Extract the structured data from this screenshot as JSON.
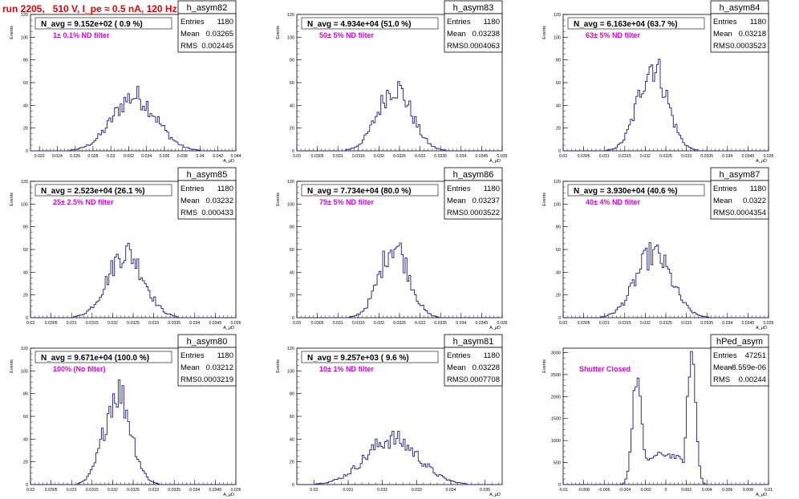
{
  "header": {
    "title": "run 2205,   510 V, I_pe ≈ 0.5 nA, 120 Hz"
  },
  "colors": {
    "hist": "#1a1a8c",
    "annotation": "#e000e0",
    "title": "#ee0000",
    "frame": "#000000"
  },
  "chart_data": [
    {
      "type": "bar",
      "name": "h_asym82",
      "stats": {
        "entries_label": "Entries",
        "entries": "1180",
        "mean_label": "Mean",
        "mean": "0.03265",
        "rms_label": "RMS",
        "rms": "0.002445"
      },
      "navg": "N_avg = 9.152e+02 ( 0.9 %)",
      "filter": "1± 0.1% ND filter",
      "ylabel": "Events",
      "xlabel": "A_μD",
      "xlim": [
        0.021,
        0.044
      ],
      "ylim": [
        0,
        120
      ],
      "xticks": [
        "0.022",
        "0.024",
        "0.026",
        "0.028",
        "0.03",
        "0.032",
        "0.034",
        "0.036",
        "0.038",
        "0.04",
        "0.042",
        "0.044"
      ],
      "yticks": [
        "0",
        "20",
        "40",
        "60",
        "80",
        "100",
        "120"
      ],
      "mean": 0.03265,
      "rms": 0.002445,
      "peak": 48
    },
    {
      "type": "bar",
      "name": "h_asym83",
      "stats": {
        "entries_label": "Entries",
        "entries": "1180",
        "mean_label": "Mean",
        "mean": "0.03238",
        "rms_label": "RMS",
        "rms": "0.0004063"
      },
      "navg": "N_avg = 4.934e+04 (51.0 %)",
      "filter": "50± 5% ND filter",
      "ylabel": "Events",
      "xlabel": "A_μD",
      "xlim": [
        0.03,
        0.035
      ],
      "ylim": [
        0,
        120
      ],
      "xticks": [
        "0.03",
        "0.0305",
        "0.031",
        "0.0315",
        "0.032",
        "0.0325",
        "0.033",
        "0.0335",
        "0.034",
        "0.0345",
        "0.035"
      ],
      "yticks": [
        "0",
        "20",
        "40",
        "60",
        "80",
        "100",
        "120"
      ],
      "mean": 0.03238,
      "rms": 0.0004063,
      "peak": 56
    },
    {
      "type": "bar",
      "name": "h_asym84",
      "stats": {
        "entries_label": "Entries",
        "entries": "1180",
        "mean_label": "Mean",
        "mean": "0.03218",
        "rms_label": "RMS",
        "rms": "0.0003523"
      },
      "navg": "N_avg = 6.163e+04 (63.7 %)",
      "filter": "63± 5% ND filter",
      "ylabel": "Events",
      "xlabel": "A_μD",
      "xlim": [
        0.03,
        0.035
      ],
      "ylim": [
        0,
        120
      ],
      "xticks": [
        "0.03",
        "0.0305",
        "0.031",
        "0.0315",
        "0.032",
        "0.0325",
        "0.033",
        "0.0335",
        "0.034",
        "0.0345",
        "0.035"
      ],
      "yticks": [
        "0",
        "20",
        "40",
        "60",
        "80",
        "100",
        "120"
      ],
      "mean": 0.03218,
      "rms": 0.0003523,
      "peak": 76
    },
    {
      "type": "bar",
      "name": "h_asym85",
      "stats": {
        "entries_label": "Entries",
        "entries": "1180",
        "mean_label": "Mean",
        "mean": "0.03232",
        "rms_label": "RMS",
        "rms": "0.000433"
      },
      "navg": "N_avg = 2.523e+04 (26.1 %)",
      "filter": "25± 2.5% ND filter",
      "ylabel": "Events",
      "xlabel": "A_μD",
      "xlim": [
        0.03,
        0.035
      ],
      "ylim": [
        0,
        120
      ],
      "xticks": [
        "0.03",
        "0.0305",
        "0.031",
        "0.0315",
        "0.032",
        "0.0325",
        "0.033",
        "0.0335",
        "0.034",
        "0.0345",
        "0.035"
      ],
      "yticks": [
        "0",
        "20",
        "40",
        "60",
        "80",
        "100",
        "120"
      ],
      "mean": 0.03232,
      "rms": 0.000433,
      "peak": 58
    },
    {
      "type": "bar",
      "name": "h_asym86",
      "stats": {
        "entries_label": "Entries",
        "entries": "1180",
        "mean_label": "Mean",
        "mean": "0.03237",
        "rms_label": "RMS",
        "rms": "0.0003522"
      },
      "navg": "N_avg = 7.734e+04 (80.0 %)",
      "filter": "79± 5% ND filter",
      "ylabel": "Events",
      "xlabel": "A_μD",
      "xlim": [
        0.03,
        0.035
      ],
      "ylim": [
        0,
        120
      ],
      "xticks": [
        "0.03",
        "0.0305",
        "0.031",
        "0.0315",
        "0.032",
        "0.0325",
        "0.033",
        "0.0335",
        "0.034",
        "0.0345",
        "0.035"
      ],
      "yticks": [
        "0",
        "20",
        "40",
        "60",
        "80",
        "100",
        "120"
      ],
      "mean": 0.03237,
      "rms": 0.0003522,
      "peak": 64
    },
    {
      "type": "bar",
      "name": "h_asym87",
      "stats": {
        "entries_label": "Entries",
        "entries": "1180",
        "mean_label": "Mean",
        "mean": "0.0322",
        "rms_label": "RMS",
        "rms": "0.0004354"
      },
      "navg": "N_avg = 3.930e+04 (40.6 %)",
      "filter": "40± 4% ND filter",
      "ylabel": "Events",
      "xlabel": "A_μD",
      "xlim": [
        0.03,
        0.035
      ],
      "ylim": [
        0,
        120
      ],
      "xticks": [
        "0.03",
        "0.0305",
        "0.031",
        "0.0315",
        "0.032",
        "0.0325",
        "0.033",
        "0.0335",
        "0.034",
        "0.0345",
        "0.035"
      ],
      "yticks": [
        "0",
        "20",
        "40",
        "60",
        "80",
        "100",
        "120"
      ],
      "mean": 0.0322,
      "rms": 0.0004354,
      "peak": 56
    },
    {
      "type": "bar",
      "name": "h_asym80",
      "stats": {
        "entries_label": "Entries",
        "entries": "1180",
        "mean_label": "Mean",
        "mean": "0.03212",
        "rms_label": "RMS",
        "rms": "0.0003219"
      },
      "navg": "N_avg = 9.671e+04 (100.0 %)",
      "filter": "100% (No filter)",
      "ylabel": "Events",
      "xlabel": "A_μD",
      "xlim": [
        0.03,
        0.035
      ],
      "ylim": [
        0,
        120
      ],
      "xticks": [
        "0.03",
        "0.0305",
        "0.031",
        "0.0315",
        "0.032",
        "0.0325",
        "0.033",
        "0.0335",
        "0.034",
        "0.0345",
        "0.035"
      ],
      "yticks": [
        "0",
        "20",
        "40",
        "60",
        "80",
        "100",
        "120"
      ],
      "mean": 0.03212,
      "rms": 0.0003219,
      "peak": 82
    },
    {
      "type": "bar",
      "name": "h_asym81",
      "stats": {
        "entries_label": "Entries",
        "entries": "1180",
        "mean_label": "Mean",
        "mean": "0.03228",
        "rms_label": "RMS",
        "rms": "0.0007708"
      },
      "navg": "N_avg = 9.257e+03 ( 9.6 %)",
      "filter": "10± 1% ND filter",
      "ylabel": "Events",
      "xlabel": "A_μD",
      "xlim": [
        0.0295,
        0.0355
      ],
      "ylim": [
        0,
        120
      ],
      "xticks": [
        "0.03",
        "0.031",
        "0.032",
        "0.033",
        "0.034",
        "0.035"
      ],
      "yticks": [
        "0",
        "20",
        "40",
        "60",
        "80",
        "100",
        "120"
      ],
      "mean": 0.03228,
      "rms": 0.0007708,
      "peak": 40
    },
    {
      "type": "bar",
      "name": "hPed_asym",
      "stats": {
        "entries_label": "Entries",
        "entries": "47251",
        "mean_label": "Mean",
        "mean": "-8.559e-06",
        "rms_label": "RMS",
        "rms": "0.00244"
      },
      "navg": "",
      "filter": "Shutter Closed",
      "ylabel": "Events",
      "xlabel": "A_μD",
      "xlim": [
        -0.01,
        0.01
      ],
      "ylim": [
        0,
        3100
      ],
      "xticks": [
        "-0.01",
        "-0.008",
        "-0.006",
        "-0.004",
        "-0.002",
        "0",
        "0.002",
        "0.004",
        "0.006",
        "0.008",
        "0.01"
      ],
      "yticks": [
        "0",
        "500",
        "1000",
        "1500",
        "2000",
        "2500",
        "3000"
      ],
      "bimodal": true,
      "peaks": [
        {
          "x": -0.0028,
          "h": 2450
        },
        {
          "x": 0.0025,
          "h": 3000
        }
      ],
      "valley": 600
    }
  ]
}
